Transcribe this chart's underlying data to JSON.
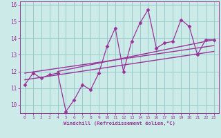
{
  "title": "",
  "xlabel": "Windchill (Refroidissement éolien,°C)",
  "x_values": [
    0,
    1,
    2,
    3,
    4,
    5,
    6,
    7,
    8,
    9,
    10,
    11,
    12,
    13,
    14,
    15,
    16,
    17,
    18,
    19,
    20,
    21,
    22,
    23
  ],
  "y_values": [
    11.2,
    11.9,
    11.6,
    11.8,
    11.9,
    9.6,
    10.3,
    11.2,
    10.9,
    11.9,
    13.5,
    14.6,
    12.0,
    13.8,
    14.9,
    15.7,
    13.4,
    13.7,
    13.8,
    15.1,
    14.7,
    13.0,
    13.9,
    13.9
  ],
  "line_color": "#993399",
  "marker_color": "#993399",
  "bg_color": "#CCEAE8",
  "grid_color": "#99CCCC",
  "axis_color": "#993399",
  "tick_color": "#993399",
  "ylim": [
    9.5,
    16.2
  ],
  "yticks": [
    10,
    11,
    12,
    13,
    14,
    15,
    16
  ],
  "xticks": [
    0,
    1,
    2,
    3,
    4,
    5,
    6,
    7,
    8,
    9,
    10,
    11,
    12,
    13,
    14,
    15,
    16,
    17,
    18,
    19,
    20,
    21,
    22,
    23
  ],
  "trend1_start_x": 0,
  "trend1_start_y": 11.5,
  "trend1_end_x": 23,
  "trend1_end_y": 13.2,
  "trend2_start_x": 0,
  "trend2_start_y": 11.9,
  "trend2_end_x": 23,
  "trend2_end_y": 13.55,
  "trend3_start_x": 4,
  "trend3_start_y": 12.0,
  "trend3_end_x": 23,
  "trend3_end_y": 13.9
}
